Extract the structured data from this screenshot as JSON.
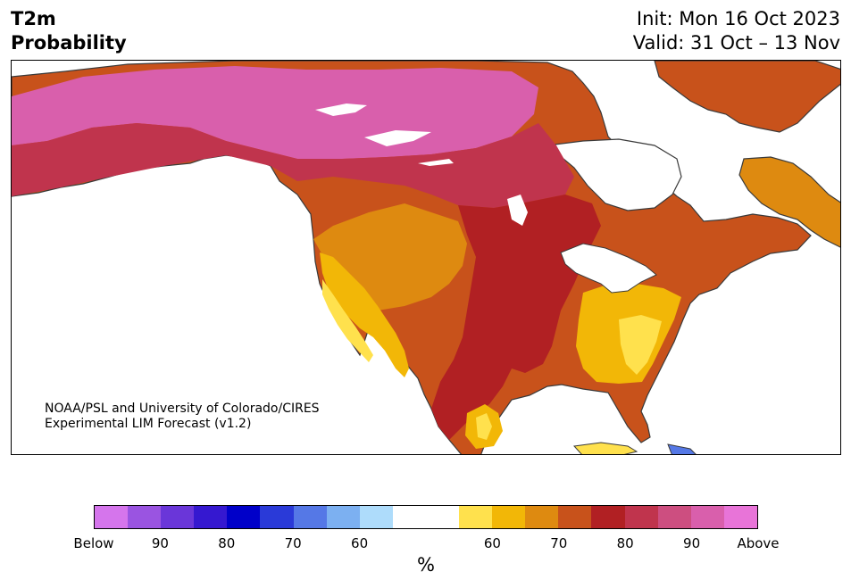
{
  "header": {
    "title_line1": "T2m",
    "title_line2": "Probability",
    "init": "Init: Mon 16 Oct 2023",
    "valid": "Valid: 31 Oct – 13 Nov"
  },
  "map": {
    "region": "North America",
    "credit_line1": "NOAA/PSL and University of Colorado/CIRES",
    "credit_line2": "Experimental LIM Forecast (v1.2)"
  },
  "colorbar": {
    "colors": [
      "#d575ec",
      "#9a54e1",
      "#6a36d9",
      "#3518d0",
      "#0000c9",
      "#2a3ad8",
      "#5578e6",
      "#7cb0f1",
      "#aedcfb",
      "#ffffff",
      "#ffffff",
      "#ffe14d",
      "#f2b707",
      "#de8a10",
      "#c8521b",
      "#b12023",
      "#c0344d",
      "#cd4e80",
      "#d95fac",
      "#e874d8"
    ],
    "tick_labels": [
      "Below",
      "90",
      "80",
      "70",
      "60",
      "60",
      "70",
      "80",
      "90",
      "Above"
    ],
    "unit": "%"
  }
}
